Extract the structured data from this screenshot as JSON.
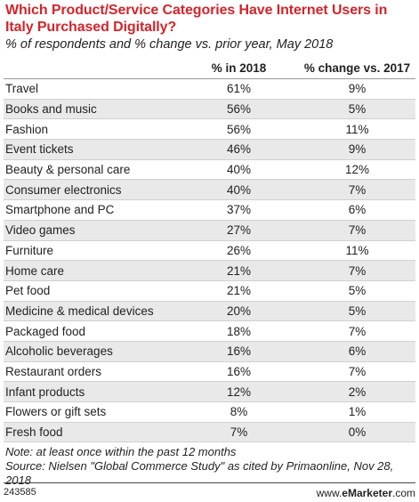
{
  "chart_data": {
    "type": "table",
    "title": "Which Product/Service Categories Have Internet Users in Italy Purchased Digitally?",
    "subtitle": "% of respondents and % change vs. prior year, May 2018",
    "columns": [
      "% in 2018",
      "% change vs. 2017"
    ],
    "rows": [
      {
        "category": "Travel",
        "pct_2018": "61%",
        "change_vs_2017": "9%"
      },
      {
        "category": "Books and music",
        "pct_2018": "56%",
        "change_vs_2017": "5%"
      },
      {
        "category": "Fashion",
        "pct_2018": "56%",
        "change_vs_2017": "11%"
      },
      {
        "category": "Event tickets",
        "pct_2018": "46%",
        "change_vs_2017": "9%"
      },
      {
        "category": "Beauty & personal care",
        "pct_2018": "40%",
        "change_vs_2017": "12%"
      },
      {
        "category": "Consumer electronics",
        "pct_2018": "40%",
        "change_vs_2017": "7%"
      },
      {
        "category": "Smartphone and PC",
        "pct_2018": "37%",
        "change_vs_2017": "6%"
      },
      {
        "category": "Video games",
        "pct_2018": "27%",
        "change_vs_2017": "7%"
      },
      {
        "category": "Furniture",
        "pct_2018": "26%",
        "change_vs_2017": "11%"
      },
      {
        "category": "Home care",
        "pct_2018": "21%",
        "change_vs_2017": "7%"
      },
      {
        "category": "Pet food",
        "pct_2018": "21%",
        "change_vs_2017": "5%"
      },
      {
        "category": "Medicine & medical devices",
        "pct_2018": "20%",
        "change_vs_2017": "5%"
      },
      {
        "category": "Packaged food",
        "pct_2018": "18%",
        "change_vs_2017": "7%"
      },
      {
        "category": "Alcoholic beverages",
        "pct_2018": "16%",
        "change_vs_2017": "6%"
      },
      {
        "category": "Restaurant orders",
        "pct_2018": "16%",
        "change_vs_2017": "7%"
      },
      {
        "category": "Infant products",
        "pct_2018": "12%",
        "change_vs_2017": "2%"
      },
      {
        "category": "Flowers or gift sets",
        "pct_2018": "8%",
        "change_vs_2017": "1%"
      },
      {
        "category": "Fresh food",
        "pct_2018": "7%",
        "change_vs_2017": "0%"
      }
    ]
  },
  "notes": {
    "note": "Note: at least once within the past 12 months",
    "source": "Source: Nielsen \"Global Commerce Study\" as cited by Primaonline, Nov 28, 2018"
  },
  "footer": {
    "chart_id": "243585",
    "brand_prefix": "www.",
    "brand_name": "eMarketer",
    "brand_suffix": ".com"
  },
  "colors": {
    "title": "#d4242b",
    "row_alt": "#e9e9e9"
  }
}
